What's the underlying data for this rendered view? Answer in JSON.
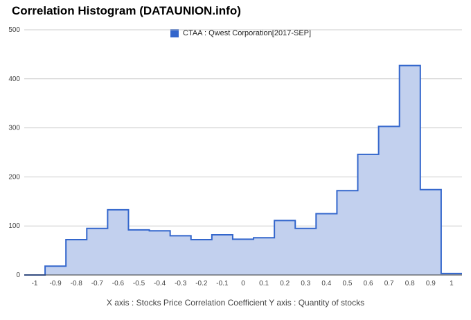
{
  "title": "Correlation Histogram (DATAUNION.info)",
  "legend_label": "CTAA : Qwest Corporation[2017-SEP]",
  "x_caption": "X axis : Stocks Price Correlation Coefficient  Y axis : Quantity of stocks",
  "colors": {
    "line": "#3366cc",
    "fill": "#c2d0ee",
    "grid": "#cccccc",
    "axis": "#333333"
  },
  "chart_data": {
    "type": "area",
    "step": "histogram",
    "title": "Correlation Histogram (DATAUNION.info)",
    "xlabel": "X axis : Stocks Price Correlation Coefficient",
    "ylabel": "Y axis : Quantity of stocks",
    "xlim": [
      -1.05,
      1.05
    ],
    "ylim": [
      0,
      500
    ],
    "grid": true,
    "legend_position": "top-center",
    "x_ticks": [
      "-1",
      "-0.9",
      "-0.8",
      "-0.7",
      "-0.6",
      "-0.5",
      "-0.4",
      "-0.3",
      "-0.2",
      "-0.1",
      "0",
      "0.1",
      "0.2",
      "0.3",
      "0.4",
      "0.5",
      "0.6",
      "0.7",
      "0.8",
      "0.9",
      "1"
    ],
    "y_ticks": [
      0,
      100,
      200,
      300,
      400,
      500
    ],
    "series": [
      {
        "name": "CTAA : Qwest Corporation[2017-SEP]",
        "x": [
          -1,
          -0.9,
          -0.8,
          -0.7,
          -0.6,
          -0.5,
          -0.4,
          -0.3,
          -0.2,
          -0.1,
          0,
          0.1,
          0.2,
          0.3,
          0.4,
          0.5,
          0.6,
          0.7,
          0.8,
          0.9,
          1
        ],
        "values": [
          0,
          18,
          72,
          95,
          133,
          92,
          90,
          80,
          72,
          82,
          73,
          76,
          111,
          95,
          125,
          172,
          246,
          303,
          427,
          174,
          3
        ]
      }
    ]
  }
}
